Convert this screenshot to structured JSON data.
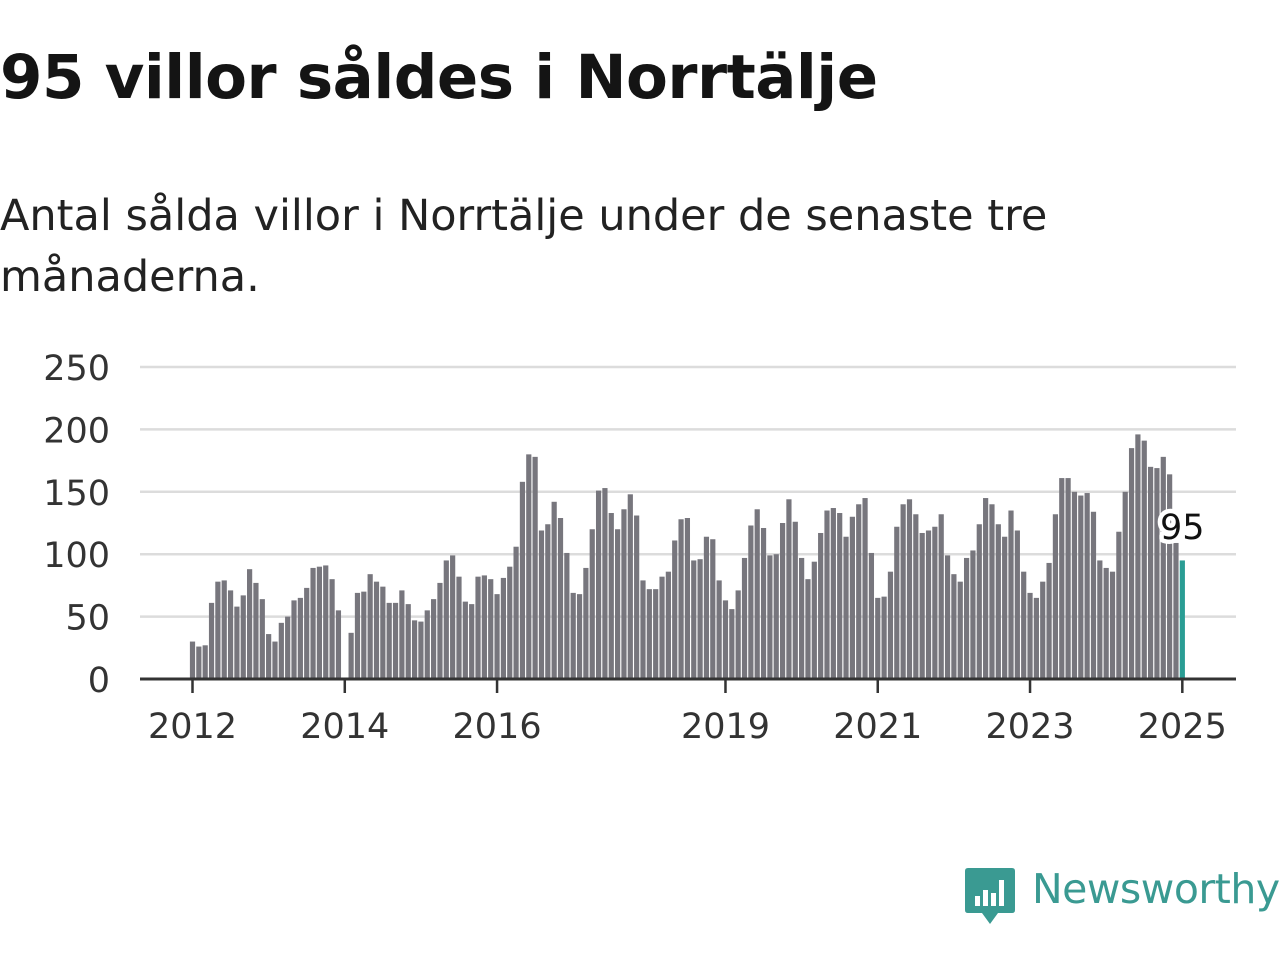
{
  "title": "95 villor såldes i Norrtälje",
  "subtitle": "Antal sålda villor i Norrtälje under de senaste tre månaderna.",
  "brand": {
    "name": "Newsworthy",
    "color": "#3a9a92",
    "icon": "newsworthy-logo-icon"
  },
  "colors": {
    "bar": "#77767d",
    "highlight": "#2a9d94",
    "grid": "#dcdcdc",
    "axis": "#333333"
  },
  "chart_data": {
    "type": "bar",
    "title": "",
    "xlabel": "",
    "ylabel": "",
    "ylim": [
      0,
      250
    ],
    "yticks": [
      "0",
      "50",
      "100",
      "150",
      "200",
      "250"
    ],
    "xtick_labels": [
      "2012",
      "2014",
      "2016",
      "2019",
      "2021",
      "2023",
      "2025"
    ],
    "xtick_start_index": [
      0,
      24,
      48,
      84,
      108,
      132,
      156
    ],
    "grid": true,
    "highlight_label": "95",
    "series": [
      {
        "values": [
          30,
          26,
          27,
          61,
          78,
          79,
          71,
          58,
          67,
          88,
          77,
          64,
          36,
          30,
          45,
          50,
          63,
          65,
          73,
          89,
          90,
          91,
          80,
          55,
          0,
          37,
          69,
          70,
          84,
          78,
          74,
          61,
          61,
          71,
          60,
          47,
          46,
          55,
          64,
          77,
          95,
          99,
          82,
          62,
          60,
          82,
          83,
          80,
          68,
          81,
          90,
          106,
          158,
          180,
          178,
          119,
          124,
          142,
          129,
          101,
          69,
          68,
          89,
          120,
          151,
          153,
          133,
          120,
          136,
          148,
          131,
          79,
          72,
          72,
          82,
          86,
          111,
          128,
          129,
          95,
          96,
          114,
          112,
          79,
          63,
          56,
          71,
          97,
          123,
          136,
          121,
          99,
          100,
          125,
          144,
          126,
          97,
          80,
          94,
          117,
          135,
          137,
          133,
          114,
          130,
          140,
          145,
          101,
          65,
          66,
          86,
          122,
          140,
          144,
          132,
          117,
          119,
          122,
          132,
          99,
          84,
          78,
          97,
          103,
          124,
          145,
          140,
          124,
          114,
          135,
          119,
          86,
          69,
          65,
          78,
          93,
          132,
          161,
          161,
          150,
          147,
          149,
          134,
          95,
          89,
          86,
          118,
          150,
          185,
          196,
          191,
          170,
          169,
          178,
          164,
          109,
          95
        ]
      }
    ]
  }
}
